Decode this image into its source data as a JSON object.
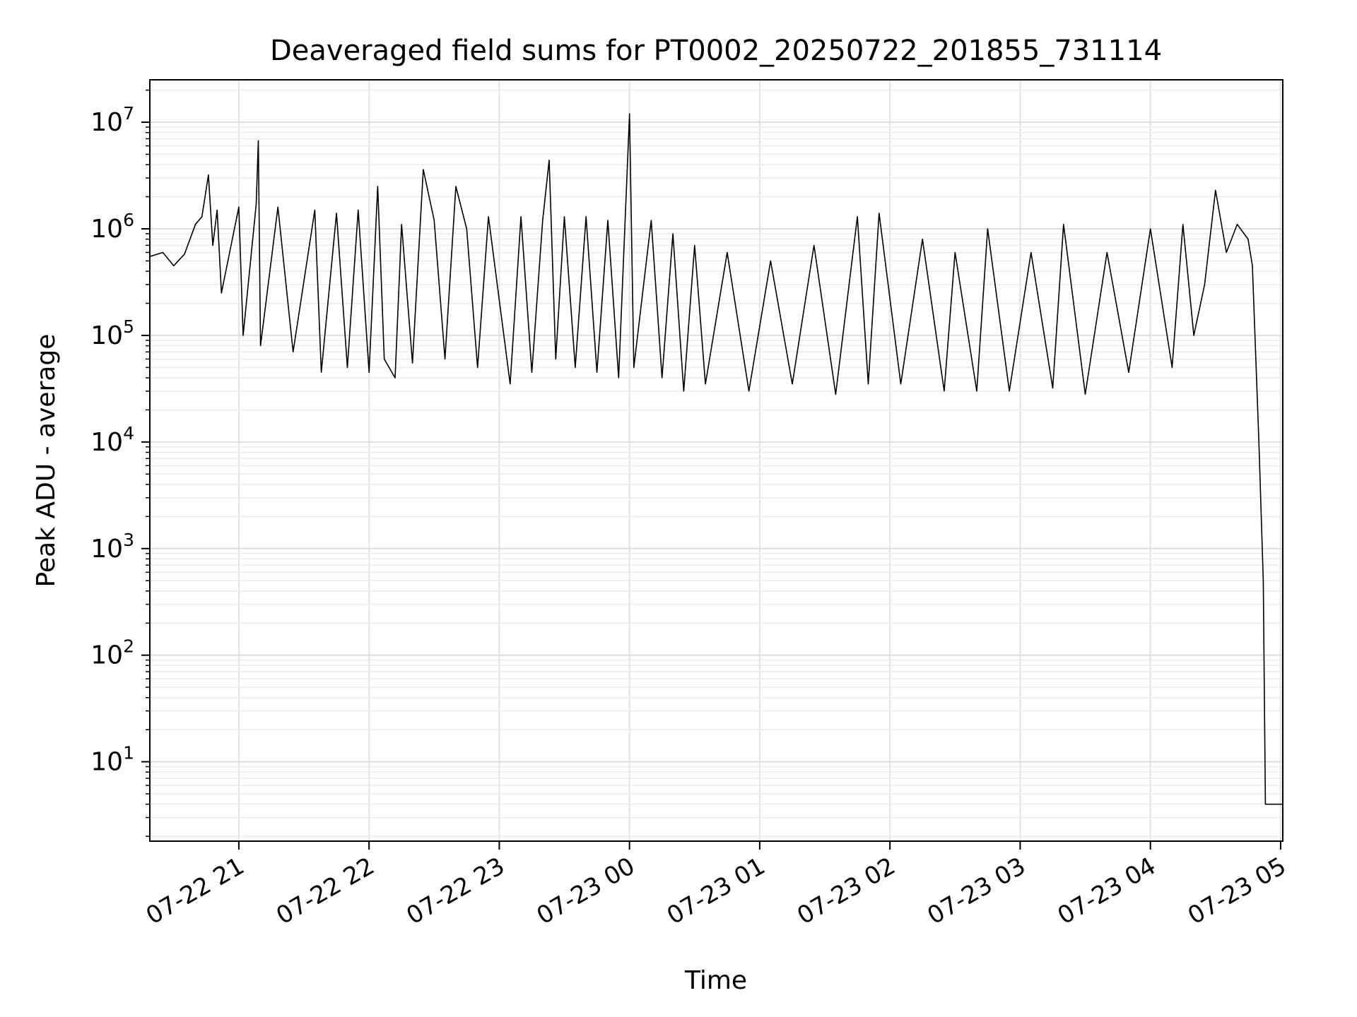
{
  "chart_data": {
    "type": "line",
    "title": "Deaveraged field sums for PT0002_20250722_201855_731114",
    "xlabel": "Time",
    "ylabel": "Peak ADU - average",
    "yscale": "log",
    "xlim": [
      "2025-07-22T20:19:00",
      "2025-07-23T05:01:00"
    ],
    "ylim": [
      1.8,
      25000000
    ],
    "xticks": [
      {
        "t": "2025-07-22T21:00:00",
        "label": "07-22 21"
      },
      {
        "t": "2025-07-22T22:00:00",
        "label": "07-22 22"
      },
      {
        "t": "2025-07-22T23:00:00",
        "label": "07-22 23"
      },
      {
        "t": "2025-07-23T00:00:00",
        "label": "07-23 00"
      },
      {
        "t": "2025-07-23T01:00:00",
        "label": "07-23 01"
      },
      {
        "t": "2025-07-23T02:00:00",
        "label": "07-23 02"
      },
      {
        "t": "2025-07-23T03:00:00",
        "label": "07-23 03"
      },
      {
        "t": "2025-07-23T04:00:00",
        "label": "07-23 04"
      },
      {
        "t": "2025-07-23T05:00:00",
        "label": "07-23 05"
      }
    ],
    "yticks": [
      {
        "value": 10,
        "base": "10",
        "exp": "1"
      },
      {
        "value": 100,
        "base": "10",
        "exp": "2"
      },
      {
        "value": 1000,
        "base": "10",
        "exp": "3"
      },
      {
        "value": 10000,
        "base": "10",
        "exp": "4"
      },
      {
        "value": 100000,
        "base": "10",
        "exp": "5"
      },
      {
        "value": 1000000,
        "base": "10",
        "exp": "6"
      },
      {
        "value": 10000000,
        "base": "10",
        "exp": "7"
      }
    ],
    "grid": true,
    "series": [
      {
        "color": "#000000",
        "points": [
          [
            "2025-07-22T20:19:00",
            550000
          ],
          [
            "2025-07-22T20:25:00",
            600000
          ],
          [
            "2025-07-22T20:30:00",
            450000
          ],
          [
            "2025-07-22T20:35:00",
            580000
          ],
          [
            "2025-07-22T20:40:00",
            1100000
          ],
          [
            "2025-07-22T20:43:00",
            1300000
          ],
          [
            "2025-07-22T20:46:00",
            3200000
          ],
          [
            "2025-07-22T20:48:00",
            700000
          ],
          [
            "2025-07-22T20:50:00",
            1500000
          ],
          [
            "2025-07-22T20:52:00",
            250000
          ],
          [
            "2025-07-22T21:00:00",
            1600000
          ],
          [
            "2025-07-22T21:02:00",
            100000
          ],
          [
            "2025-07-22T21:08:00",
            1700000
          ],
          [
            "2025-07-22T21:09:00",
            6700000
          ],
          [
            "2025-07-22T21:10:00",
            80000
          ],
          [
            "2025-07-22T21:18:00",
            1600000
          ],
          [
            "2025-07-22T21:25:00",
            70000
          ],
          [
            "2025-07-22T21:35:00",
            1500000
          ],
          [
            "2025-07-22T21:38:00",
            45000
          ],
          [
            "2025-07-22T21:45:00",
            1400000
          ],
          [
            "2025-07-22T21:50:00",
            50000
          ],
          [
            "2025-07-22T21:55:00",
            1500000
          ],
          [
            "2025-07-22T22:00:00",
            45000
          ],
          [
            "2025-07-22T22:04:00",
            2500000
          ],
          [
            "2025-07-22T22:07:00",
            60000
          ],
          [
            "2025-07-22T22:12:00",
            40000
          ],
          [
            "2025-07-22T22:15:00",
            1100000
          ],
          [
            "2025-07-22T22:20:00",
            55000
          ],
          [
            "2025-07-22T22:25:00",
            3600000
          ],
          [
            "2025-07-22T22:30:00",
            1200000
          ],
          [
            "2025-07-22T22:35:00",
            60000
          ],
          [
            "2025-07-22T22:40:00",
            2500000
          ],
          [
            "2025-07-22T22:45:00",
            1000000
          ],
          [
            "2025-07-22T22:50:00",
            50000
          ],
          [
            "2025-07-22T22:55:00",
            1300000
          ],
          [
            "2025-07-22T23:05:00",
            35000
          ],
          [
            "2025-07-22T23:10:00",
            1300000
          ],
          [
            "2025-07-22T23:15:00",
            45000
          ],
          [
            "2025-07-22T23:20:00",
            1200000
          ],
          [
            "2025-07-22T23:23:00",
            4400000
          ],
          [
            "2025-07-22T23:26:00",
            60000
          ],
          [
            "2025-07-22T23:30:00",
            1300000
          ],
          [
            "2025-07-22T23:35:00",
            50000
          ],
          [
            "2025-07-22T23:40:00",
            1300000
          ],
          [
            "2025-07-22T23:45:00",
            45000
          ],
          [
            "2025-07-22T23:50:00",
            1200000
          ],
          [
            "2025-07-22T23:55:00",
            40000
          ],
          [
            "2025-07-23T00:00:00",
            12000000
          ],
          [
            "2025-07-23T00:02:00",
            50000
          ],
          [
            "2025-07-23T00:10:00",
            1200000
          ],
          [
            "2025-07-23T00:15:00",
            40000
          ],
          [
            "2025-07-23T00:20:00",
            900000
          ],
          [
            "2025-07-23T00:25:00",
            30000
          ],
          [
            "2025-07-23T00:30:00",
            700000
          ],
          [
            "2025-07-23T00:35:00",
            35000
          ],
          [
            "2025-07-23T00:45:00",
            600000
          ],
          [
            "2025-07-23T00:55:00",
            30000
          ],
          [
            "2025-07-23T01:05:00",
            500000
          ],
          [
            "2025-07-23T01:15:00",
            35000
          ],
          [
            "2025-07-23T01:25:00",
            700000
          ],
          [
            "2025-07-23T01:35:00",
            28000
          ],
          [
            "2025-07-23T01:45:00",
            1300000
          ],
          [
            "2025-07-23T01:50:00",
            35000
          ],
          [
            "2025-07-23T01:55:00",
            1400000
          ],
          [
            "2025-07-23T02:05:00",
            35000
          ],
          [
            "2025-07-23T02:15:00",
            800000
          ],
          [
            "2025-07-23T02:25:00",
            30000
          ],
          [
            "2025-07-23T02:30:00",
            600000
          ],
          [
            "2025-07-23T02:40:00",
            30000
          ],
          [
            "2025-07-23T02:45:00",
            1000000
          ],
          [
            "2025-07-23T02:55:00",
            30000
          ],
          [
            "2025-07-23T03:05:00",
            600000
          ],
          [
            "2025-07-23T03:15:00",
            32000
          ],
          [
            "2025-07-23T03:20:00",
            1100000
          ],
          [
            "2025-07-23T03:30:00",
            28000
          ],
          [
            "2025-07-23T03:40:00",
            600000
          ],
          [
            "2025-07-23T03:50:00",
            45000
          ],
          [
            "2025-07-23T04:00:00",
            1000000
          ],
          [
            "2025-07-23T04:10:00",
            50000
          ],
          [
            "2025-07-23T04:15:00",
            1100000
          ],
          [
            "2025-07-23T04:20:00",
            100000
          ],
          [
            "2025-07-23T04:25:00",
            300000
          ],
          [
            "2025-07-23T04:30:00",
            2300000
          ],
          [
            "2025-07-23T04:35:00",
            600000
          ],
          [
            "2025-07-23T04:40:00",
            1100000
          ],
          [
            "2025-07-23T04:45:00",
            800000
          ],
          [
            "2025-07-23T04:47:00",
            450000
          ],
          [
            "2025-07-23T04:50:00",
            10000
          ],
          [
            "2025-07-23T04:52:00",
            500
          ],
          [
            "2025-07-23T04:53:00",
            4
          ],
          [
            "2025-07-23T05:01:00",
            4
          ]
        ]
      }
    ]
  }
}
